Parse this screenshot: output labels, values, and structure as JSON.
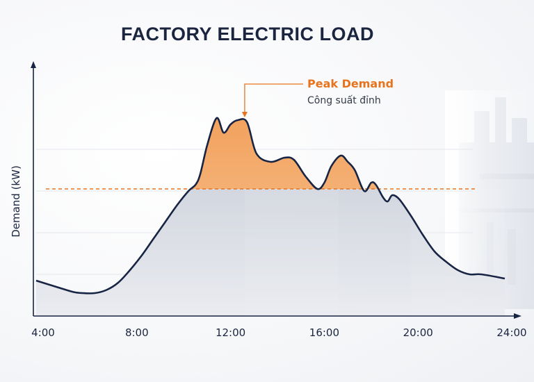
{
  "chart_data": {
    "type": "area",
    "title": "FACTORY ELECTRIC LOAD",
    "xlabel": "",
    "ylabel": "Demand (kW)",
    "x_ticks": [
      "4:00",
      "8:00",
      "12:00",
      "16:00",
      "20:00",
      "24:00"
    ],
    "xlim": [
      4,
      24
    ],
    "ylim": [
      0,
      100
    ],
    "threshold": 61,
    "series": [
      {
        "x": [
          4.0,
          5.0,
          5.6,
          6.0,
          6.5,
          7.0,
          7.5,
          8.0,
          8.5,
          9.0,
          9.5,
          10.0,
          10.5,
          10.8,
          11.0,
          11.3,
          11.7,
          12.0,
          12.3,
          12.6,
          13.0,
          13.4,
          14.0,
          14.6,
          15.0,
          15.5,
          16.0,
          16.3,
          16.6,
          17.0,
          17.3,
          17.6,
          18.0,
          18.3,
          18.5,
          18.8,
          19.0,
          19.2,
          19.5,
          20.0,
          20.5,
          21.0,
          21.5,
          22.0,
          22.5,
          23.0,
          24.0
        ],
        "y": [
          17,
          13.5,
          11.5,
          11,
          11,
          12.5,
          16,
          22,
          29,
          37,
          45,
          53,
          60,
          63,
          68,
          82,
          95,
          88,
          92,
          94,
          93,
          78,
          74,
          76,
          75,
          67,
          61,
          64,
          72,
          77,
          74,
          70,
          60,
          64,
          63,
          57,
          55,
          58,
          56,
          48,
          39,
          31,
          26,
          22,
          20,
          20,
          18
        ]
      }
    ],
    "annotation": {
      "label": "Peak Demand",
      "sublabel": "Công suất đỉnh",
      "x": 12.9,
      "y": 94
    }
  }
}
